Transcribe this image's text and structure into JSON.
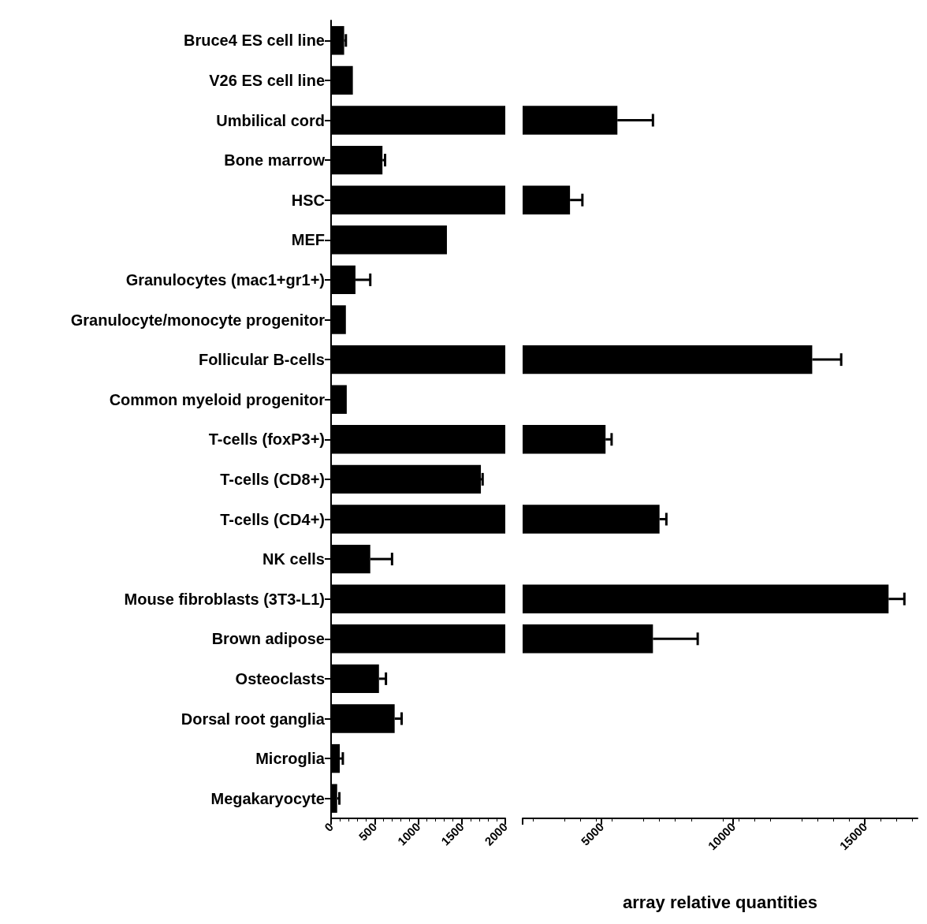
{
  "chart_data": [
    {
      "type": "bar",
      "orientation": "horizontal",
      "categories": [
        "Bruce4 ES cell line",
        "V26 ES cell line",
        "Umbilical cord",
        "Bone marrow",
        "HSC",
        "MEF",
        "Granulocytes (mac1+gr1+)",
        "Granulocyte/monocyte progenitor",
        "Follicular B-cells",
        "Common myeloid progenitor",
        "T-cells (foxP3+)",
        "T-cells (CD8+)",
        "T-cells (CD4+)",
        "NK cells",
        "Mouse fibroblasts (3T3-L1)",
        "Brown adipose",
        "Osteoclasts",
        "Dorsal root ganglia",
        "Microglia",
        "Megakaryocyte"
      ],
      "values": [
        150,
        250,
        2000,
        590,
        2000,
        1330,
        280,
        170,
        2000,
        180,
        2000,
        1720,
        2000,
        450,
        2000,
        2000,
        550,
        730,
        100,
        70
      ],
      "errors": [
        20,
        null,
        null,
        30,
        null,
        null,
        170,
        null,
        null,
        null,
        null,
        20,
        null,
        250,
        null,
        null,
        80,
        80,
        35,
        25
      ],
      "color": "#000000",
      "xlim": [
        0,
        2000
      ],
      "xticks": [
        0,
        500,
        1000,
        1500,
        2000
      ],
      "grid": false
    },
    {
      "type": "bar",
      "orientation": "horizontal",
      "categories": [
        null,
        null,
        null,
        null,
        null,
        null,
        null,
        null,
        null,
        null,
        null,
        null,
        null,
        null,
        null,
        null,
        null,
        null,
        null,
        null
      ],
      "values": [
        null,
        null,
        5600,
        null,
        3800,
        null,
        null,
        null,
        13000,
        null,
        5150,
        null,
        7200,
        null,
        15900,
        6950,
        null,
        null,
        null,
        null
      ],
      "errors": [
        null,
        null,
        1350,
        null,
        470,
        null,
        null,
        null,
        1100,
        null,
        230,
        null,
        260,
        null,
        600,
        1700,
        null,
        null,
        null,
        null
      ],
      "color": "#000000",
      "xlim": [
        2000,
        17000
      ],
      "xticks": [
        {
          "value": 2000,
          "label": null
        },
        5000,
        10000,
        15000
      ],
      "xlabel": "array relative quantities",
      "tick_labels": "x",
      "grid": false
    }
  ]
}
